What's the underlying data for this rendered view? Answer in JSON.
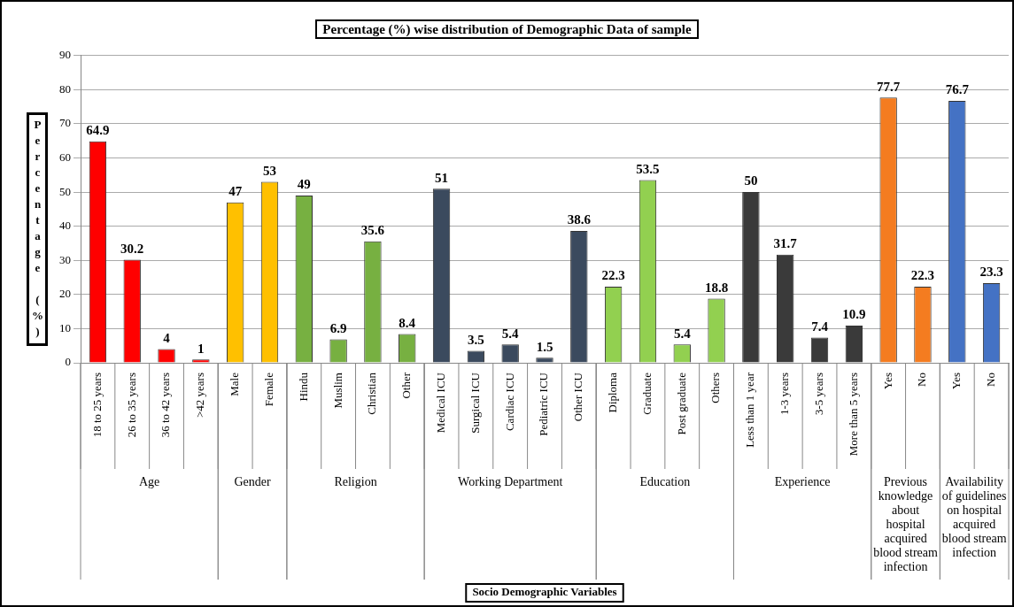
{
  "chart_data": {
    "type": "bar",
    "title": "Percentage (%) wise distribution of Demographic Data of sample",
    "ylabel": "Percentage (%)",
    "categories": [
      "18 to 25 years",
      "26 to 35 years",
      "36 to 42 years",
      ">42 years",
      "Male",
      "Female",
      "Hindu",
      "Muslim",
      "Christian",
      "Other",
      "Medical ICU",
      "Surgical ICU",
      "Cardiac ICU",
      "Pediatric ICU",
      "Other ICU",
      "Diploma",
      "Graduate",
      "Post graduate",
      "Others",
      "Less than 1 year",
      "1-3 years",
      "3-5 years",
      "More than 5 years",
      "Yes",
      "No",
      "Yes",
      "No"
    ],
    "values": [
      64.9,
      30.2,
      4,
      1,
      47,
      53,
      49,
      6.9,
      35.6,
      8.4,
      51,
      3.5,
      5.4,
      1.5,
      38.6,
      22.3,
      53.5,
      5.4,
      18.8,
      50,
      31.7,
      7.4,
      10.9,
      77.7,
      22.3,
      76.7,
      23.3
    ],
    "colors": [
      "#ff0000",
      "#ff0000",
      "#ff0000",
      "#ff0000",
      "#ffc000",
      "#ffc000",
      "#77b041",
      "#77b041",
      "#77b041",
      "#77b041",
      "#3b4a5e",
      "#3b4a5e",
      "#3b4a5e",
      "#3b4a5e",
      "#3b4a5e",
      "#92d050",
      "#92d050",
      "#92d050",
      "#92d050",
      "#3a3a3a",
      "#3a3a3a",
      "#3a3a3a",
      "#3a3a3a",
      "#f47c20",
      "#f47c20",
      "#4472c4",
      "#4472c4"
    ],
    "annotations": [
      "Age",
      "Gender",
      "Religion",
      "Working Department",
      "Education",
      "Experience",
      "Previous knowledge about hospital acquired blood stream infection",
      "Availability of guidelines on hospital acquired blood stream infection",
      "Socio Demographic Variables"
    ],
    "ylim": [
      0,
      90
    ],
    "yticks": [
      0,
      10,
      20,
      30,
      40,
      50,
      60,
      70,
      80,
      90
    ],
    "grid": "y",
    "data_labels": true,
    "legend": false
  }
}
